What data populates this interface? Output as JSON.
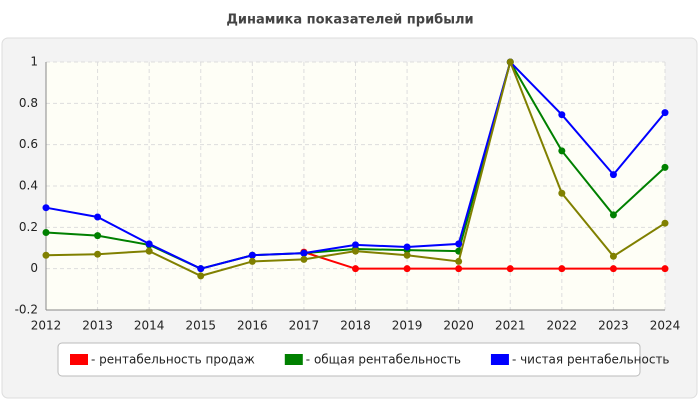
{
  "chart_data": {
    "type": "line",
    "title": "Динамика показателей прибыли",
    "categories": [
      "2012",
      "2013",
      "2014",
      "2015",
      "2016",
      "2017",
      "2018",
      "2019",
      "2020",
      "2021",
      "2022",
      "2023",
      "2024"
    ],
    "series": [
      {
        "name": "- рентабельность продаж",
        "color": "#ff0000",
        "values": [
          null,
          null,
          null,
          null,
          null,
          0.08,
          0,
          0,
          0,
          0,
          0,
          0,
          0
        ]
      },
      {
        "name": "- общая рентабельность",
        "color": "#008000",
        "values": [
          0.175,
          0.16,
          0.115,
          0.0,
          0.065,
          0.075,
          0.095,
          0.09,
          0.085,
          1,
          0.57,
          0.26,
          0.49
        ]
      },
      {
        "name": "- чистая рентабельность",
        "color": "#0000ff",
        "values": [
          0.295,
          0.25,
          0.12,
          0.0,
          0.065,
          0.075,
          0.115,
          0.105,
          0.12,
          1,
          0.745,
          0.455,
          0.755
        ]
      },
      {
        "color": "#808000",
        "values": [
          0.065,
          0.07,
          0.085,
          -0.035,
          0.035,
          0.045,
          0.085,
          0.065,
          0.035,
          1,
          0.365,
          0.06,
          0.22
        ]
      }
    ],
    "ylim": [
      -0.2,
      1
    ],
    "yticks": [
      -0.2,
      0,
      0.2,
      0.4,
      0.6,
      0.8,
      1
    ],
    "grid": true
  }
}
